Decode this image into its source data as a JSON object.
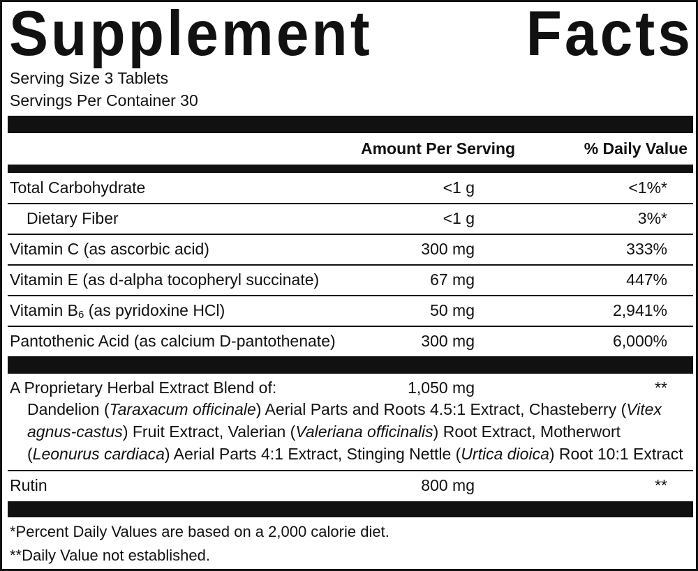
{
  "title": {
    "word1": "Supplement",
    "word2": "Facts"
  },
  "serving_size": "Serving Size 3 Tablets",
  "servings_per_container": "Servings Per Container 30",
  "header": {
    "amount": "Amount Per Serving",
    "daily_value": "% Daily Value"
  },
  "nutrients": [
    {
      "name": "Total Carbohydrate",
      "amount": "<1 g",
      "dv": "<1%*"
    },
    {
      "name": "Dietary Fiber",
      "amount": "<1 g",
      "dv": "3%*"
    },
    {
      "name": "Vitamin C (as ascorbic acid)",
      "amount": "300 mg",
      "dv": "333%"
    },
    {
      "name": "Vitamin E (as d-alpha tocopheryl succinate)",
      "amount": "67 mg",
      "dv": "447%"
    },
    {
      "name_prefix": "Vitamin B",
      "name_subscript": "6",
      "name_suffix": " (as pyridoxine HCl)",
      "amount": "50 mg",
      "dv": "2,941%"
    },
    {
      "name": "Pantothenic Acid (as calcium D-pantothenate)",
      "amount": "300 mg",
      "dv": "6,000%"
    }
  ],
  "blend": {
    "name": "A Proprietary Herbal Extract Blend of:",
    "amount": "1,050 mg",
    "dv": "**",
    "ingredients": [
      {
        "text": "Dandelion ("
      },
      {
        "italic": "Taraxacum officinale"
      },
      {
        "text": ") Aerial Parts and Roots 4.5:1 Extract, Chasteberry ("
      },
      {
        "italic": "Vitex agnus-castus"
      },
      {
        "text": ") Fruit Extract, Valerian ("
      },
      {
        "italic": "Valeriana officinalis"
      },
      {
        "text": ") Root Extract, Motherwort ("
      },
      {
        "italic": "Leonurus cardiaca"
      },
      {
        "text": ") Aerial Parts 4:1 Extract, Stinging Nettle ("
      },
      {
        "italic": "Urtica dioica"
      },
      {
        "text": ") Root 10:1 Extract"
      }
    ]
  },
  "rutin": {
    "name": "Rutin",
    "amount": "800 mg",
    "dv": "**"
  },
  "footnotes": [
    "*Percent Daily Values are based on a 2,000 calorie diet.",
    "**Daily Value not established."
  ]
}
